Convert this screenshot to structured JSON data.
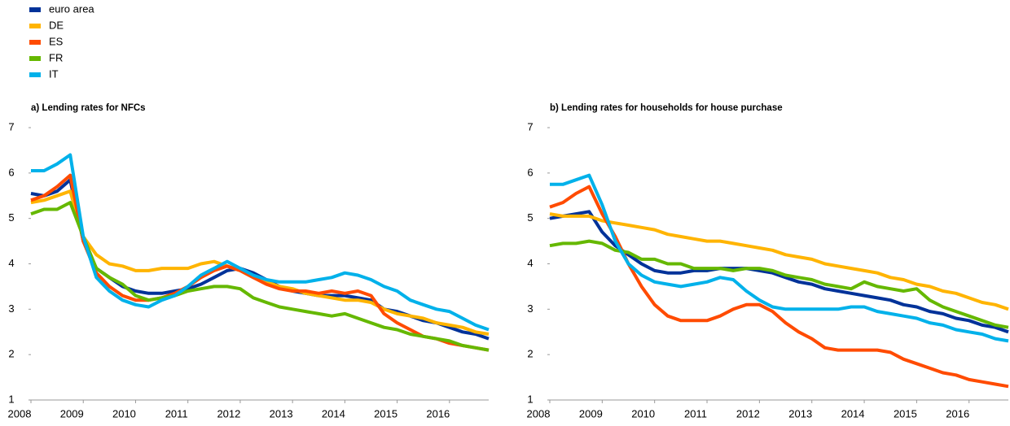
{
  "chart_data": [
    {
      "type": "line",
      "title": "a) Lending rates for NFCs",
      "x": [
        2008,
        2008.25,
        2008.5,
        2008.75,
        2009,
        2009.25,
        2009.5,
        2009.75,
        2010,
        2010.25,
        2010.5,
        2010.75,
        2011,
        2011.25,
        2011.5,
        2011.75,
        2012,
        2012.25,
        2012.5,
        2012.75,
        2013,
        2013.25,
        2013.5,
        2013.75,
        2014,
        2014.25,
        2014.5,
        2014.75,
        2015,
        2015.25,
        2015.5,
        2015.75,
        2016,
        2016.25,
        2016.5,
        2016.75
      ],
      "xlim": [
        2008,
        2016.75
      ],
      "xticks": [
        2008,
        2009,
        2010,
        2011,
        2012,
        2013,
        2014,
        2015,
        2016
      ],
      "ylim": [
        1,
        7
      ],
      "yticks": [
        1,
        2,
        3,
        4,
        5,
        6,
        7
      ],
      "series": [
        {
          "name": "euro area",
          "color": "#003299",
          "values": [
            5.55,
            5.5,
            5.6,
            5.85,
            4.5,
            3.9,
            3.7,
            3.5,
            3.4,
            3.35,
            3.35,
            3.4,
            3.45,
            3.55,
            3.7,
            3.85,
            3.9,
            3.8,
            3.65,
            3.5,
            3.4,
            3.35,
            3.3,
            3.3,
            3.3,
            3.25,
            3.2,
            3.0,
            2.95,
            2.85,
            2.75,
            2.7,
            2.6,
            2.5,
            2.45,
            2.35
          ]
        },
        {
          "name": "DE",
          "color": "#ffb400",
          "values": [
            5.35,
            5.4,
            5.5,
            5.6,
            4.6,
            4.2,
            4.0,
            3.95,
            3.85,
            3.85,
            3.9,
            3.9,
            3.9,
            4.0,
            4.05,
            3.95,
            3.85,
            3.7,
            3.6,
            3.5,
            3.45,
            3.35,
            3.3,
            3.25,
            3.2,
            3.2,
            3.15,
            3.0,
            2.9,
            2.85,
            2.8,
            2.7,
            2.65,
            2.6,
            2.5,
            2.45
          ]
        },
        {
          "name": "ES",
          "color": "#ff4b00",
          "values": [
            5.4,
            5.5,
            5.7,
            5.95,
            4.5,
            3.8,
            3.5,
            3.3,
            3.2,
            3.2,
            3.25,
            3.35,
            3.5,
            3.7,
            3.85,
            3.95,
            3.85,
            3.7,
            3.55,
            3.45,
            3.4,
            3.4,
            3.35,
            3.4,
            3.35,
            3.4,
            3.3,
            2.9,
            2.7,
            2.55,
            2.4,
            2.35,
            2.25,
            2.2,
            2.15,
            2.1
          ]
        },
        {
          "name": "FR",
          "color": "#65b800",
          "values": [
            5.1,
            5.2,
            5.2,
            5.35,
            4.6,
            3.9,
            3.7,
            3.55,
            3.3,
            3.2,
            3.25,
            3.3,
            3.4,
            3.45,
            3.5,
            3.5,
            3.45,
            3.25,
            3.15,
            3.05,
            3.0,
            2.95,
            2.9,
            2.85,
            2.9,
            2.8,
            2.7,
            2.6,
            2.55,
            2.45,
            2.4,
            2.35,
            2.3,
            2.2,
            2.15,
            2.1
          ]
        },
        {
          "name": "IT",
          "color": "#00b1ea",
          "values": [
            6.05,
            6.05,
            6.2,
            6.4,
            4.6,
            3.7,
            3.4,
            3.2,
            3.1,
            3.05,
            3.2,
            3.3,
            3.5,
            3.75,
            3.9,
            4.05,
            3.9,
            3.75,
            3.65,
            3.6,
            3.6,
            3.6,
            3.65,
            3.7,
            3.8,
            3.75,
            3.65,
            3.5,
            3.4,
            3.2,
            3.1,
            3.0,
            2.95,
            2.8,
            2.65,
            2.55
          ]
        }
      ]
    },
    {
      "type": "line",
      "title": "b) Lending rates for households for house purchase",
      "x": [
        2008,
        2008.25,
        2008.5,
        2008.75,
        2009,
        2009.25,
        2009.5,
        2009.75,
        2010,
        2010.25,
        2010.5,
        2010.75,
        2011,
        2011.25,
        2011.5,
        2011.75,
        2012,
        2012.25,
        2012.5,
        2012.75,
        2013,
        2013.25,
        2013.5,
        2013.75,
        2014,
        2014.25,
        2014.5,
        2014.75,
        2015,
        2015.25,
        2015.5,
        2015.75,
        2016,
        2016.25,
        2016.5,
        2016.75
      ],
      "xlim": [
        2008,
        2016.75
      ],
      "xticks": [
        2008,
        2009,
        2010,
        2011,
        2012,
        2013,
        2014,
        2015,
        2016
      ],
      "ylim": [
        1,
        7
      ],
      "yticks": [
        1,
        2,
        3,
        4,
        5,
        6,
        7
      ],
      "series": [
        {
          "name": "euro area",
          "color": "#003299",
          "values": [
            5.0,
            5.05,
            5.1,
            5.15,
            4.7,
            4.4,
            4.2,
            4.0,
            3.85,
            3.8,
            3.8,
            3.85,
            3.85,
            3.9,
            3.9,
            3.9,
            3.85,
            3.8,
            3.7,
            3.6,
            3.55,
            3.45,
            3.4,
            3.35,
            3.3,
            3.25,
            3.2,
            3.1,
            3.05,
            2.95,
            2.9,
            2.8,
            2.75,
            2.65,
            2.6,
            2.5
          ]
        },
        {
          "name": "DE",
          "color": "#ffb400",
          "values": [
            5.1,
            5.05,
            5.05,
            5.05,
            4.95,
            4.9,
            4.85,
            4.8,
            4.75,
            4.65,
            4.6,
            4.55,
            4.5,
            4.5,
            4.45,
            4.4,
            4.35,
            4.3,
            4.2,
            4.15,
            4.1,
            4.0,
            3.95,
            3.9,
            3.85,
            3.8,
            3.7,
            3.65,
            3.55,
            3.5,
            3.4,
            3.35,
            3.25,
            3.15,
            3.1,
            3.0
          ]
        },
        {
          "name": "ES",
          "color": "#ff4b00",
          "values": [
            5.25,
            5.35,
            5.55,
            5.7,
            5.1,
            4.6,
            4.0,
            3.5,
            3.1,
            2.85,
            2.75,
            2.75,
            2.75,
            2.85,
            3.0,
            3.1,
            3.1,
            2.95,
            2.7,
            2.5,
            2.35,
            2.15,
            2.1,
            2.1,
            2.1,
            2.1,
            2.05,
            1.9,
            1.8,
            1.7,
            1.6,
            1.55,
            1.45,
            1.4,
            1.35,
            1.3
          ]
        },
        {
          "name": "FR",
          "color": "#65b800",
          "values": [
            4.4,
            4.45,
            4.45,
            4.5,
            4.45,
            4.3,
            4.25,
            4.1,
            4.1,
            4.0,
            4.0,
            3.9,
            3.9,
            3.9,
            3.85,
            3.9,
            3.9,
            3.85,
            3.75,
            3.7,
            3.65,
            3.55,
            3.5,
            3.45,
            3.6,
            3.5,
            3.45,
            3.4,
            3.45,
            3.2,
            3.05,
            2.95,
            2.85,
            2.75,
            2.65,
            2.6
          ]
        },
        {
          "name": "IT",
          "color": "#00b1ea",
          "values": [
            5.75,
            5.75,
            5.85,
            5.95,
            5.3,
            4.5,
            4.0,
            3.75,
            3.6,
            3.55,
            3.5,
            3.55,
            3.6,
            3.7,
            3.65,
            3.4,
            3.2,
            3.05,
            3.0,
            3.0,
            3.0,
            3.0,
            3.0,
            3.05,
            3.05,
            2.95,
            2.9,
            2.85,
            2.8,
            2.7,
            2.65,
            2.55,
            2.5,
            2.45,
            2.35,
            2.3
          ]
        }
      ]
    }
  ]
}
